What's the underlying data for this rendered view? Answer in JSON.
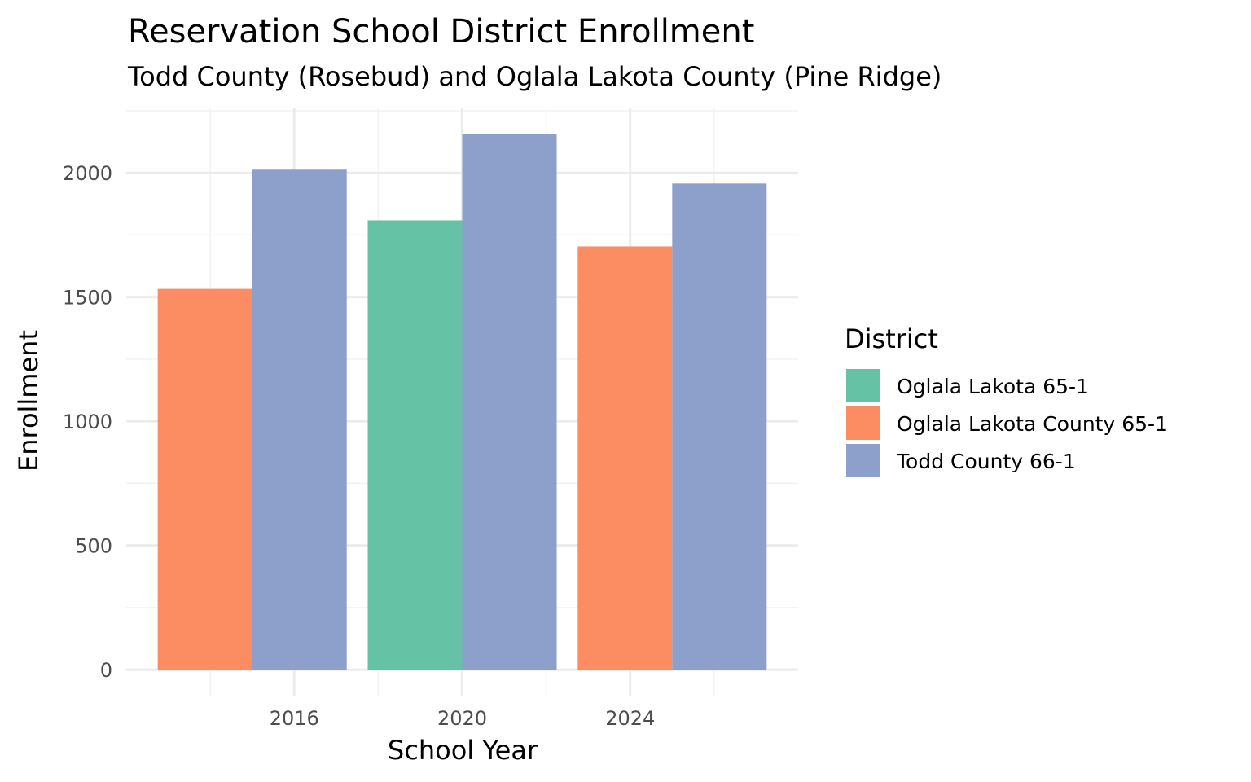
{
  "chart_data": {
    "type": "bar",
    "title": "Reservation School District Enrollment",
    "subtitle": "Todd County (Rosebud) and Oglala Lakota County (Pine Ridge)",
    "xlabel": "School Year",
    "ylabel": "Enrollment",
    "xlim": [
      2012.0,
      2028.0
    ],
    "ylim": [
      -108,
      2263
    ],
    "x_ticks": [
      2016,
      2020,
      2024
    ],
    "x_tick_labels": [
      "2016",
      "2020",
      "2024"
    ],
    "y_ticks": [
      0,
      500,
      1000,
      1500,
      2000
    ],
    "y_tick_labels": [
      "0",
      "500",
      "1000",
      "1500",
      "2000"
    ],
    "grid": true,
    "position": "dodge",
    "legend": {
      "title": "District",
      "placement": "right",
      "entries": [
        {
          "name": "Oglala Lakota 65-1",
          "color": "#66C2A5"
        },
        {
          "name": "Oglala Lakota County 65-1",
          "color": "#FC8D62"
        },
        {
          "name": "Todd County 66-1",
          "color": "#8DA0CB"
        }
      ]
    },
    "bars": [
      {
        "year": 2015,
        "district": "Oglala Lakota County 65-1",
        "value": 1533
      },
      {
        "year": 2015,
        "district": "Todd County 66-1",
        "value": 2013
      },
      {
        "year": 2020,
        "district": "Oglala Lakota 65-1",
        "value": 1809
      },
      {
        "year": 2020,
        "district": "Todd County 66-1",
        "value": 2155
      },
      {
        "year": 2025,
        "district": "Oglala Lakota County 65-1",
        "value": 1704
      },
      {
        "year": 2025,
        "district": "Todd County 66-1",
        "value": 1957
      }
    ]
  }
}
